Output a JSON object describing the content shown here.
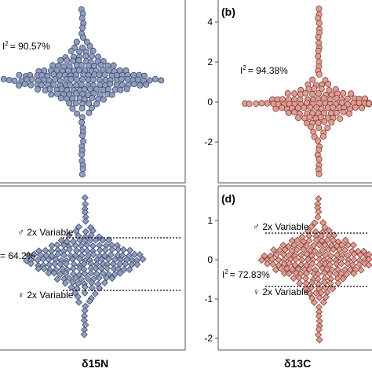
{
  "colors": {
    "blue_fill": "#8f9dbf",
    "blue_stroke": "#3e4a6b",
    "red_fill": "#dc9f94",
    "red_stroke": "#8a3a33",
    "panel_border": "#555555"
  },
  "chart_data": [
    {
      "panel": "a",
      "type": "scatter",
      "marker": "circle",
      "color_key": "blue",
      "panel_label": "",
      "annotation": "= 90.57%",
      "i_label": "I",
      "i_sup": "2",
      "xlabel": "",
      "yticks": [],
      "threshold_labels": []
    },
    {
      "panel": "b",
      "type": "scatter",
      "marker": "circle",
      "color_key": "red",
      "panel_label": "(b)",
      "annotation": "= 94.38%",
      "i_label": "I",
      "i_sup": "2",
      "xlabel": "",
      "ylim": [
        -3.6,
        5
      ],
      "yticks": [
        "4",
        "2",
        "0",
        "-2"
      ],
      "threshold_labels": []
    },
    {
      "panel": "c",
      "type": "scatter",
      "marker": "diamond",
      "color_key": "blue",
      "panel_label": "",
      "annotation": "= 64.2%",
      "i_label": "",
      "i_sup": "",
      "xlabel": "δ15N",
      "yticks": [],
      "threshold_labels": [
        "♂ 2x Variable",
        "♀ 2x Variable"
      ]
    },
    {
      "panel": "d",
      "type": "scatter",
      "marker": "diamond",
      "color_key": "red",
      "panel_label": "(d)",
      "annotation": "= 72.83%",
      "i_label": "I",
      "i_sup": "2",
      "xlabel": "δ13C",
      "ylim": [
        -2.6,
        1.8
      ],
      "yticks": [
        "1",
        "0",
        "-1",
        "-2"
      ],
      "threshold_values": [
        0.68,
        -0.68
      ],
      "threshold_labels": [
        "♂ 2x Variable",
        "♀ 2x Variable"
      ]
    }
  ]
}
